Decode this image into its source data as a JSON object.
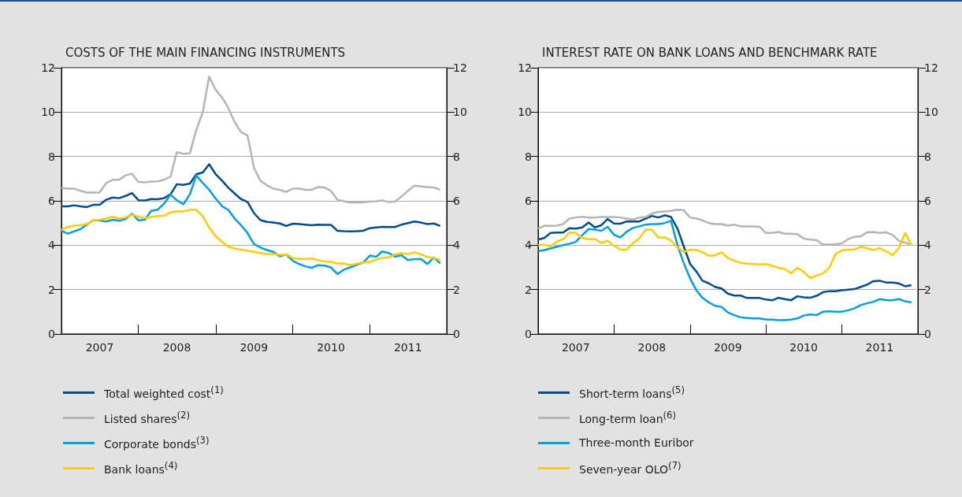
{
  "chart_data": [
    {
      "type": "line",
      "title": "COSTS OF THE MAIN FINANCING INSTRUMENTS",
      "x": [
        "2007-01",
        "2007-02",
        "2007-03",
        "2007-04",
        "2007-05",
        "2007-06",
        "2007-07",
        "2007-08",
        "2007-09",
        "2007-10",
        "2007-11",
        "2007-12",
        "2008-01",
        "2008-02",
        "2008-03",
        "2008-04",
        "2008-05",
        "2008-06",
        "2008-07",
        "2008-08",
        "2008-09",
        "2008-10",
        "2008-11",
        "2008-12",
        "2009-01",
        "2009-02",
        "2009-03",
        "2009-04",
        "2009-05",
        "2009-06",
        "2009-07",
        "2009-08",
        "2009-09",
        "2009-10",
        "2009-11",
        "2009-12",
        "2010-01",
        "2010-02",
        "2010-03",
        "2010-04",
        "2010-05",
        "2010-06",
        "2010-07",
        "2010-08",
        "2010-09",
        "2010-10",
        "2010-11",
        "2010-12",
        "2011-01",
        "2011-02",
        "2011-03",
        "2011-04",
        "2011-05",
        "2011-06",
        "2011-07",
        "2011-08",
        "2011-09",
        "2011-10",
        "2011-11",
        "2011-12"
      ],
      "xlim": [
        "2007-01",
        "2012-01"
      ],
      "xticks": [
        {
          "value": "2007-01",
          "label": null
        },
        {
          "value": "2007-07",
          "label": "2007"
        },
        {
          "value": "2008-01",
          "label": null
        },
        {
          "value": "2008-07",
          "label": "2008"
        },
        {
          "value": "2009-01",
          "label": null
        },
        {
          "value": "2009-07",
          "label": "2009"
        },
        {
          "value": "2010-01",
          "label": null
        },
        {
          "value": "2010-07",
          "label": "2010"
        },
        {
          "value": "2011-01",
          "label": null
        },
        {
          "value": "2011-07",
          "label": "2011"
        },
        {
          "value": "2012-01",
          "label": null
        }
      ],
      "ylim": [
        0,
        12
      ],
      "yticks": [
        0,
        2,
        4,
        6,
        8,
        10,
        12
      ],
      "y2lim": [
        0,
        12
      ],
      "y2ticks": [
        0,
        2,
        4,
        6,
        8,
        10,
        12
      ],
      "grid": "y",
      "legend": "bottom",
      "series": [
        {
          "name": "Total weighted cost$^{(1)}$",
          "color": "#004b8d",
          "values": [
            5.75,
            5.75,
            5.8,
            5.75,
            5.72,
            5.82,
            5.82,
            6.05,
            6.15,
            6.12,
            6.22,
            6.35,
            6.03,
            6.02,
            6.08,
            6.07,
            6.12,
            6.3,
            6.75,
            6.72,
            6.78,
            7.2,
            7.28,
            7.65,
            7.2,
            6.9,
            6.6,
            6.33,
            6.08,
            5.95,
            5.45,
            5.13,
            5.05,
            5.02,
            4.98,
            4.87,
            4.97,
            4.95,
            4.93,
            4.9,
            4.93,
            4.92,
            4.92,
            4.65,
            4.63,
            4.62,
            4.63,
            4.65,
            4.77,
            4.8,
            4.83,
            4.82,
            4.82,
            4.93,
            5.0,
            5.07,
            5.02,
            4.95,
            4.98,
            4.87
          ]
        },
        {
          "name": "Listed shares$^{(2)}$",
          "color": "#b4b4b4",
          "values": [
            6.58,
            6.55,
            6.55,
            6.45,
            6.37,
            6.37,
            6.38,
            6.8,
            6.95,
            6.95,
            7.15,
            7.22,
            6.85,
            6.83,
            6.87,
            6.88,
            6.95,
            7.1,
            8.2,
            8.12,
            8.15,
            9.2,
            10.0,
            11.6,
            11.0,
            10.65,
            10.2,
            9.55,
            9.1,
            8.95,
            7.5,
            6.9,
            6.7,
            6.55,
            6.5,
            6.4,
            6.55,
            6.55,
            6.5,
            6.5,
            6.62,
            6.6,
            6.45,
            6.05,
            5.98,
            5.93,
            5.93,
            5.93,
            5.97,
            5.98,
            6.02,
            5.95,
            5.97,
            6.2,
            6.45,
            6.68,
            6.65,
            6.62,
            6.6,
            6.5
          ]
        },
        {
          "name": "Corporate bonds$^{(3)}$",
          "color": "#00a0e0",
          "values": [
            4.65,
            4.52,
            4.62,
            4.72,
            4.93,
            5.12,
            5.12,
            5.07,
            5.15,
            5.1,
            5.18,
            5.42,
            5.12,
            5.15,
            5.55,
            5.6,
            5.87,
            6.28,
            6.02,
            5.85,
            6.3,
            7.15,
            6.8,
            6.5,
            6.1,
            5.75,
            5.6,
            5.2,
            4.9,
            4.55,
            4.05,
            3.9,
            3.78,
            3.7,
            3.5,
            3.58,
            3.3,
            3.15,
            3.05,
            2.98,
            3.1,
            3.08,
            3.0,
            2.7,
            2.9,
            3.0,
            3.12,
            3.22,
            3.53,
            3.48,
            3.72,
            3.65,
            3.48,
            3.55,
            3.33,
            3.37,
            3.38,
            3.15,
            3.45,
            3.18
          ]
        },
        {
          "name": "Bank loans$^{(4)}$",
          "color": "#ffcc00",
          "values": [
            4.7,
            4.82,
            4.88,
            4.9,
            4.95,
            5.12,
            5.15,
            5.2,
            5.28,
            5.2,
            5.25,
            5.37,
            5.28,
            5.22,
            5.27,
            5.32,
            5.33,
            5.48,
            5.53,
            5.52,
            5.6,
            5.6,
            5.3,
            4.8,
            4.4,
            4.15,
            3.93,
            3.85,
            3.8,
            3.75,
            3.7,
            3.65,
            3.6,
            3.6,
            3.57,
            3.58,
            3.42,
            3.38,
            3.38,
            3.4,
            3.33,
            3.27,
            3.25,
            3.18,
            3.18,
            3.1,
            3.17,
            3.22,
            3.25,
            3.35,
            3.43,
            3.45,
            3.58,
            3.65,
            3.6,
            3.68,
            3.58,
            3.47,
            3.43,
            3.33
          ]
        }
      ]
    },
    {
      "type": "line",
      "title": "INTEREST RATE ON BANK LOANS AND BENCHMARK RATE",
      "x": [
        "2007-01",
        "2007-02",
        "2007-03",
        "2007-04",
        "2007-05",
        "2007-06",
        "2007-07",
        "2007-08",
        "2007-09",
        "2007-10",
        "2007-11",
        "2007-12",
        "2008-01",
        "2008-02",
        "2008-03",
        "2008-04",
        "2008-05",
        "2008-06",
        "2008-07",
        "2008-08",
        "2008-09",
        "2008-10",
        "2008-11",
        "2008-12",
        "2009-01",
        "2009-02",
        "2009-03",
        "2009-04",
        "2009-05",
        "2009-06",
        "2009-07",
        "2009-08",
        "2009-09",
        "2009-10",
        "2009-11",
        "2009-12",
        "2010-01",
        "2010-02",
        "2010-03",
        "2010-04",
        "2010-05",
        "2010-06",
        "2010-07",
        "2010-08",
        "2010-09",
        "2010-10",
        "2010-11",
        "2010-12",
        "2011-01",
        "2011-02",
        "2011-03",
        "2011-04",
        "2011-05",
        "2011-06",
        "2011-07",
        "2011-08",
        "2011-09",
        "2011-10",
        "2011-11",
        "2011-12"
      ],
      "xlim": [
        "2007-01",
        "2012-01"
      ],
      "xticks": [
        {
          "value": "2007-01",
          "label": null
        },
        {
          "value": "2007-07",
          "label": "2007"
        },
        {
          "value": "2008-01",
          "label": null
        },
        {
          "value": "2008-07",
          "label": "2008"
        },
        {
          "value": "2009-01",
          "label": null
        },
        {
          "value": "2009-07",
          "label": "2009"
        },
        {
          "value": "2010-01",
          "label": null
        },
        {
          "value": "2010-07",
          "label": "2010"
        },
        {
          "value": "2011-01",
          "label": null
        },
        {
          "value": "2011-07",
          "label": "2011"
        },
        {
          "value": "2012-01",
          "label": null
        }
      ],
      "ylim": [
        0,
        12
      ],
      "yticks": [
        0,
        2,
        4,
        6,
        8,
        10,
        12
      ],
      "y2lim": [
        0,
        12
      ],
      "y2ticks": [
        0,
        2,
        4,
        6,
        8,
        10,
        12
      ],
      "grid": "y",
      "legend": "bottom",
      "series": [
        {
          "name": "Short-term loans$^{(5)}$",
          "color": "#004b8d",
          "values": [
            4.25,
            4.33,
            4.55,
            4.57,
            4.57,
            4.77,
            4.75,
            4.8,
            5.02,
            4.8,
            4.9,
            5.18,
            4.98,
            4.97,
            5.07,
            5.08,
            5.07,
            5.2,
            5.32,
            5.25,
            5.35,
            5.27,
            4.75,
            3.95,
            3.15,
            2.8,
            2.4,
            2.28,
            2.12,
            2.05,
            1.82,
            1.73,
            1.73,
            1.62,
            1.62,
            1.62,
            1.55,
            1.52,
            1.63,
            1.57,
            1.52,
            1.7,
            1.65,
            1.63,
            1.72,
            1.88,
            1.93,
            1.93,
            1.97,
            2.0,
            2.02,
            2.12,
            2.22,
            2.38,
            2.4,
            2.32,
            2.32,
            2.28,
            2.15,
            2.2
          ]
        },
        {
          "name": "Long-term loan$^{(6)}$",
          "color": "#b4b4b4",
          "values": [
            4.75,
            4.88,
            4.87,
            4.88,
            4.95,
            5.2,
            5.25,
            5.28,
            5.25,
            5.25,
            5.27,
            5.27,
            5.27,
            5.25,
            5.2,
            5.15,
            5.25,
            5.27,
            5.43,
            5.5,
            5.52,
            5.55,
            5.6,
            5.58,
            5.25,
            5.2,
            5.12,
            5.0,
            4.95,
            4.95,
            4.88,
            4.93,
            4.85,
            4.85,
            4.85,
            4.83,
            4.55,
            4.55,
            4.6,
            4.52,
            4.52,
            4.5,
            4.3,
            4.25,
            4.23,
            4.03,
            4.03,
            4.05,
            4.08,
            4.28,
            4.38,
            4.4,
            4.58,
            4.6,
            4.55,
            4.58,
            4.47,
            4.2,
            4.12,
            4.0
          ]
        },
        {
          "name": "Three-month Euribor",
          "color": "#00a0e0",
          "values": [
            3.73,
            3.78,
            3.85,
            3.93,
            4.0,
            4.07,
            4.15,
            4.45,
            4.73,
            4.7,
            4.65,
            4.83,
            4.47,
            4.35,
            4.6,
            4.78,
            4.85,
            4.93,
            4.95,
            4.95,
            5.0,
            5.1,
            4.0,
            3.2,
            2.5,
            1.95,
            1.63,
            1.42,
            1.27,
            1.22,
            0.97,
            0.85,
            0.75,
            0.72,
            0.7,
            0.7,
            0.65,
            0.65,
            0.62,
            0.62,
            0.65,
            0.7,
            0.83,
            0.88,
            0.85,
            1.0,
            1.02,
            1.0,
            1.0,
            1.07,
            1.15,
            1.3,
            1.38,
            1.45,
            1.57,
            1.53,
            1.52,
            1.57,
            1.47,
            1.42
          ]
        },
        {
          "name": "Seven-year OLO$^{(7)}$",
          "color": "#ffcc00",
          "values": [
            4.0,
            4.02,
            3.95,
            4.15,
            4.28,
            4.57,
            4.55,
            4.32,
            4.27,
            4.28,
            4.1,
            4.2,
            3.98,
            3.8,
            3.8,
            4.1,
            4.3,
            4.7,
            4.7,
            4.35,
            4.35,
            4.2,
            3.9,
            3.7,
            3.8,
            3.78,
            3.68,
            3.52,
            3.55,
            3.68,
            3.42,
            3.3,
            3.2,
            3.17,
            3.15,
            3.13,
            3.15,
            3.07,
            2.98,
            2.93,
            2.73,
            2.98,
            2.8,
            2.52,
            2.63,
            2.72,
            2.98,
            3.6,
            3.77,
            3.8,
            3.8,
            3.93,
            3.87,
            3.78,
            3.87,
            3.72,
            3.55,
            3.87,
            4.55,
            4.0
          ]
        }
      ]
    }
  ]
}
